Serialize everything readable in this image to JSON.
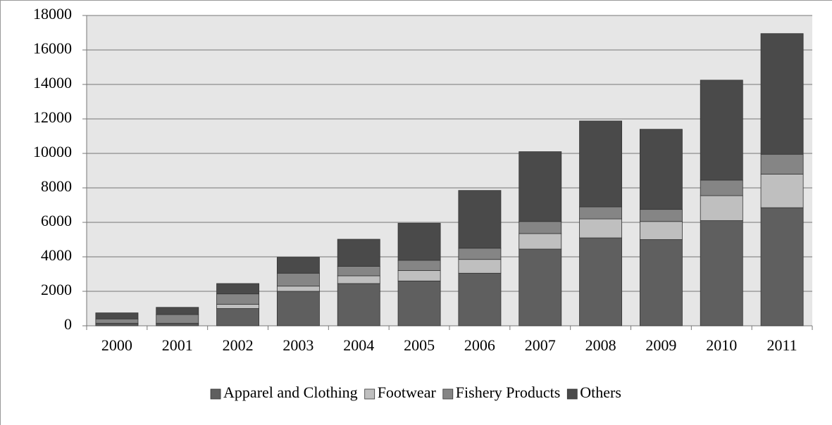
{
  "chart_data": {
    "type": "stacked_bar",
    "categories": [
      "2000",
      "2001",
      "2002",
      "2003",
      "2004",
      "2005",
      "2006",
      "2007",
      "2008",
      "2009",
      "2010",
      "2011"
    ],
    "series": [
      {
        "name": "Apparel and Clothing",
        "color": "#5f5f5f",
        "values": [
          100,
          100,
          1000,
          2000,
          2450,
          2600,
          3050,
          4450,
          5100,
          5000,
          6100,
          6850
        ]
      },
      {
        "name": "Footwear",
        "color": "#bfbfbf",
        "values": [
          50,
          50,
          250,
          300,
          450,
          600,
          800,
          900,
          1100,
          1050,
          1450,
          1950
        ]
      },
      {
        "name": "Fishery Products",
        "color": "#858585",
        "values": [
          250,
          500,
          600,
          750,
          550,
          600,
          650,
          700,
          700,
          700,
          900,
          1150
        ]
      },
      {
        "name": "Others",
        "color": "#4a4a4a",
        "values": [
          350,
          420,
          600,
          920,
          1570,
          2150,
          3350,
          4050,
          4980,
          4650,
          5800,
          7000
        ]
      }
    ],
    "ylim": [
      0,
      18000
    ],
    "yticks": [
      0,
      2000,
      4000,
      6000,
      8000,
      10000,
      12000,
      14000,
      16000,
      18000
    ],
    "grid": true,
    "legend": "bottom"
  }
}
